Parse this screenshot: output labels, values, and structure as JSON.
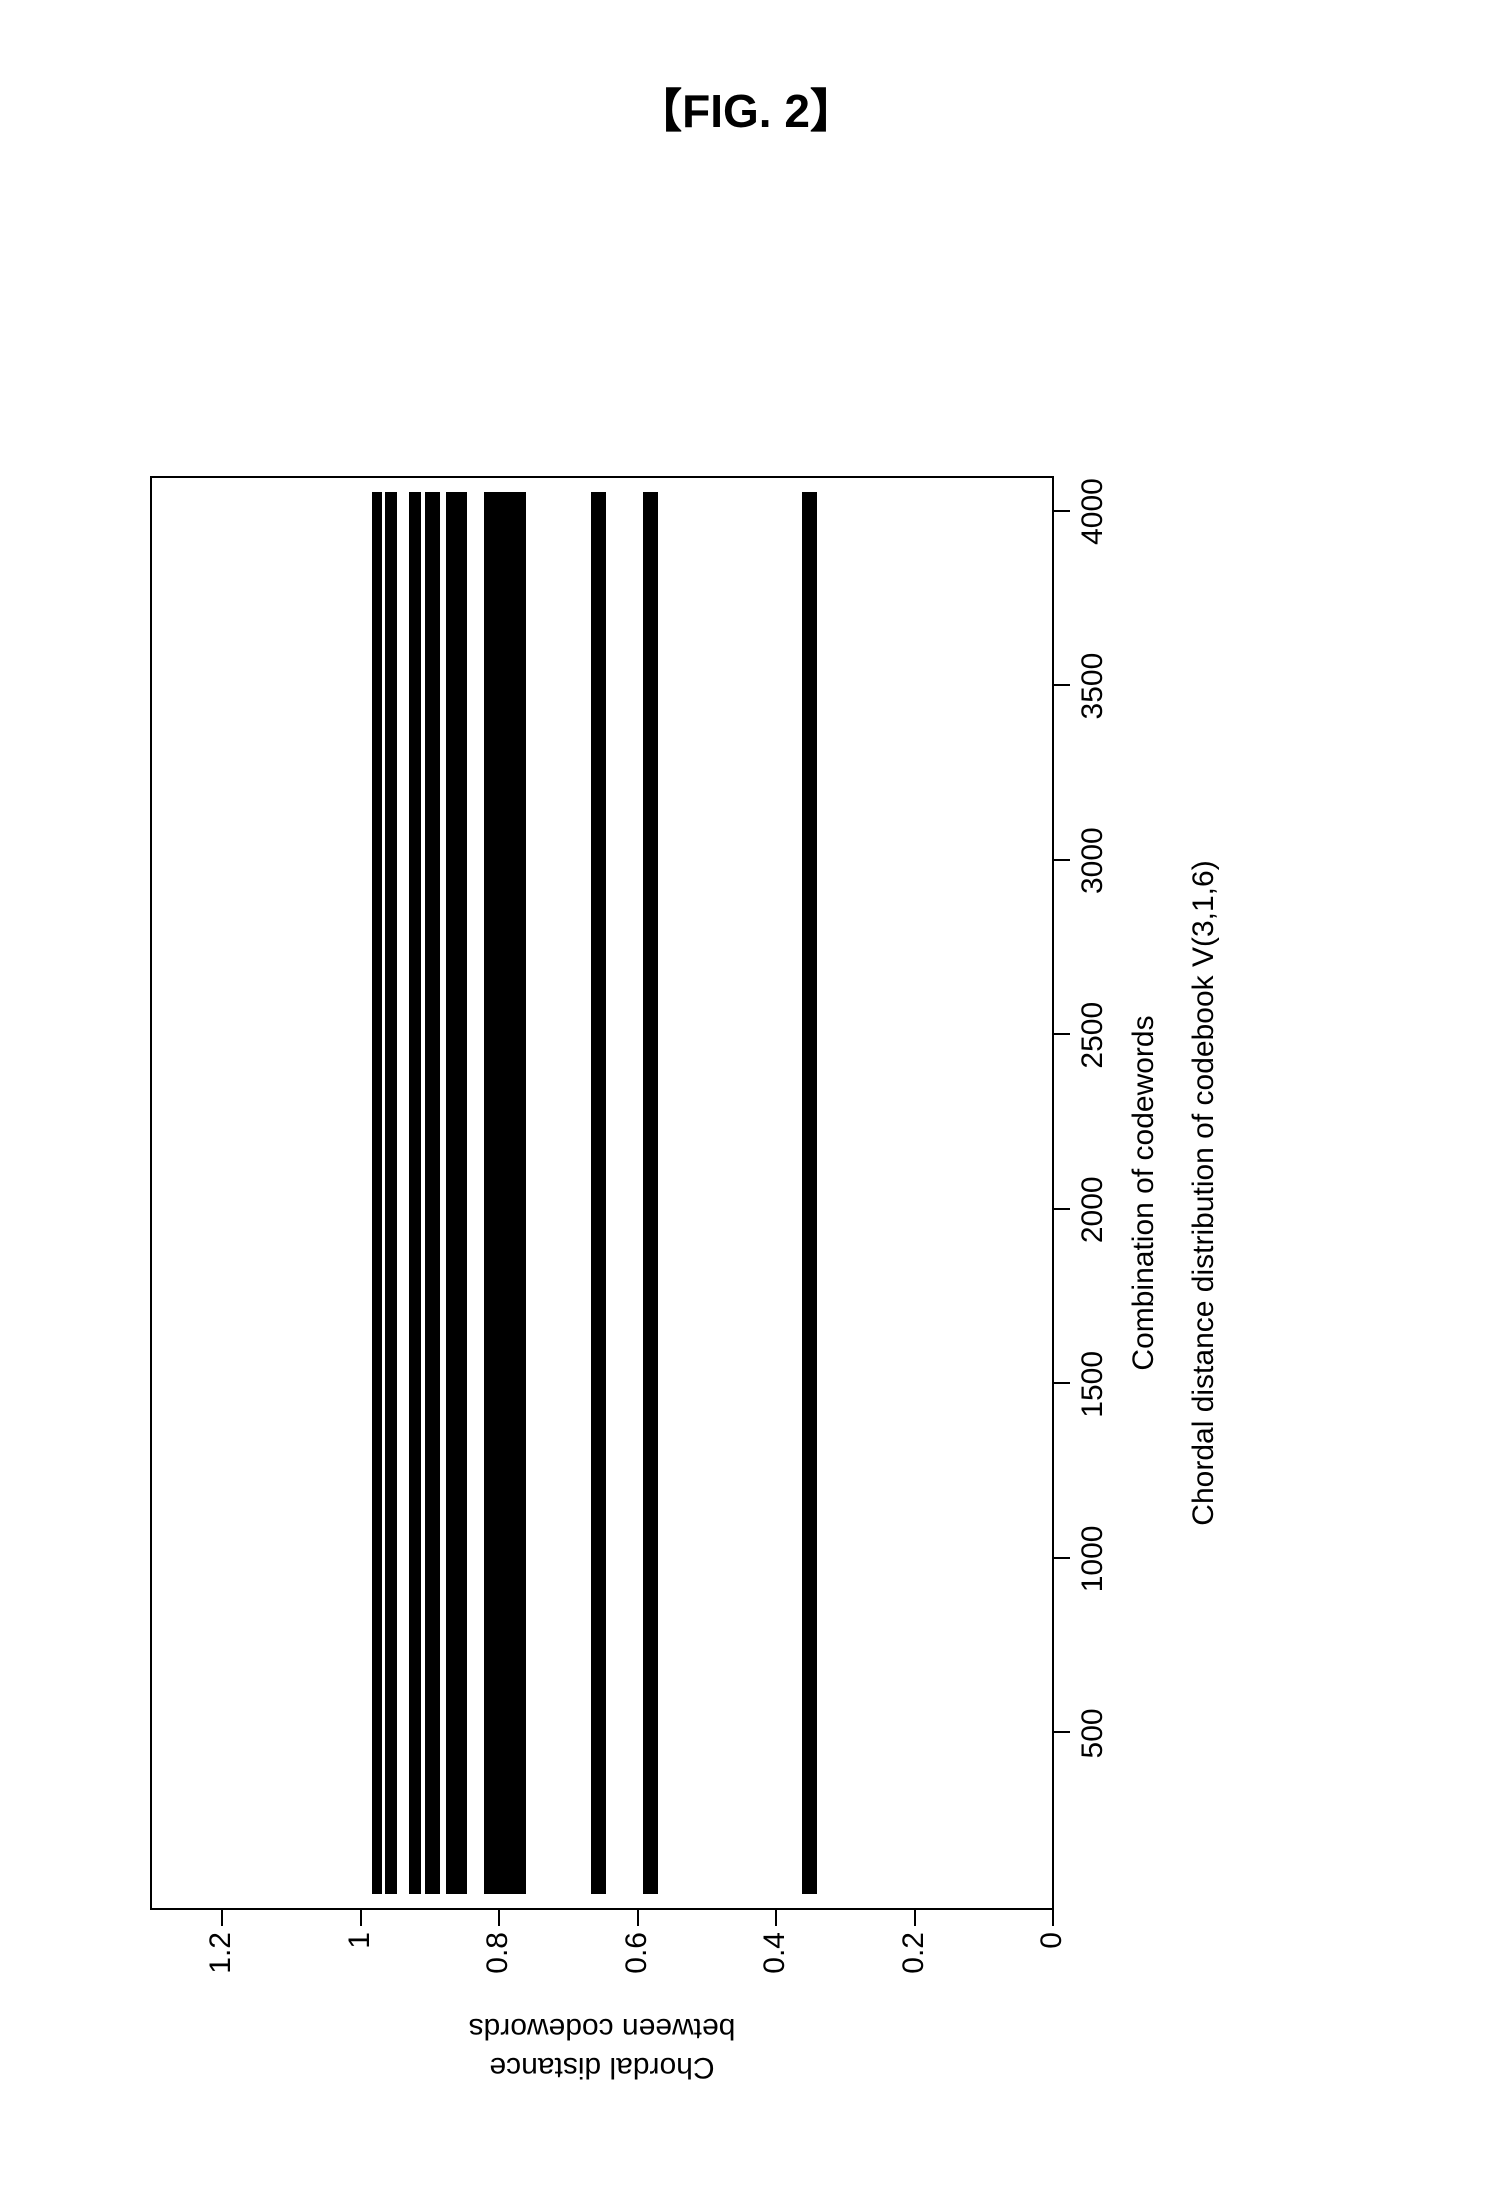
{
  "figure_label": "【FIG. 2】",
  "chart": {
    "type": "scatter-band",
    "x_axis": {
      "label": "Combination of codewords",
      "subtitle": "Chordal distance distribution of codebook V(3,1,6)",
      "min": 0,
      "max": 4096,
      "ticks": [
        500,
        1000,
        1500,
        2000,
        2500,
        3000,
        3500,
        4000
      ],
      "fontsize": 30
    },
    "y_axis": {
      "label_line1": "Chordal distance",
      "label_line2": "between codewords",
      "min": 0,
      "max": 1.3,
      "ticks": [
        0,
        0.2,
        0.4,
        0.6,
        0.8,
        1,
        1.2
      ],
      "fontsize": 30
    },
    "bands": [
      {
        "y_center": 0.35,
        "thickness": 0.022
      },
      {
        "y_center": 0.58,
        "thickness": 0.022
      },
      {
        "y_center": 0.655,
        "thickness": 0.022
      },
      {
        "y_center": 0.79,
        "thickness": 0.06
      },
      {
        "y_center": 0.86,
        "thickness": 0.03
      },
      {
        "y_center": 0.895,
        "thickness": 0.022
      },
      {
        "y_center": 0.92,
        "thickness": 0.018
      },
      {
        "y_center": 0.955,
        "thickness": 0.018
      },
      {
        "y_center": 0.975,
        "thickness": 0.015
      }
    ],
    "marker_color": "#000000",
    "background_color": "#ffffff",
    "border_color": "#000000",
    "border_width": 2
  }
}
